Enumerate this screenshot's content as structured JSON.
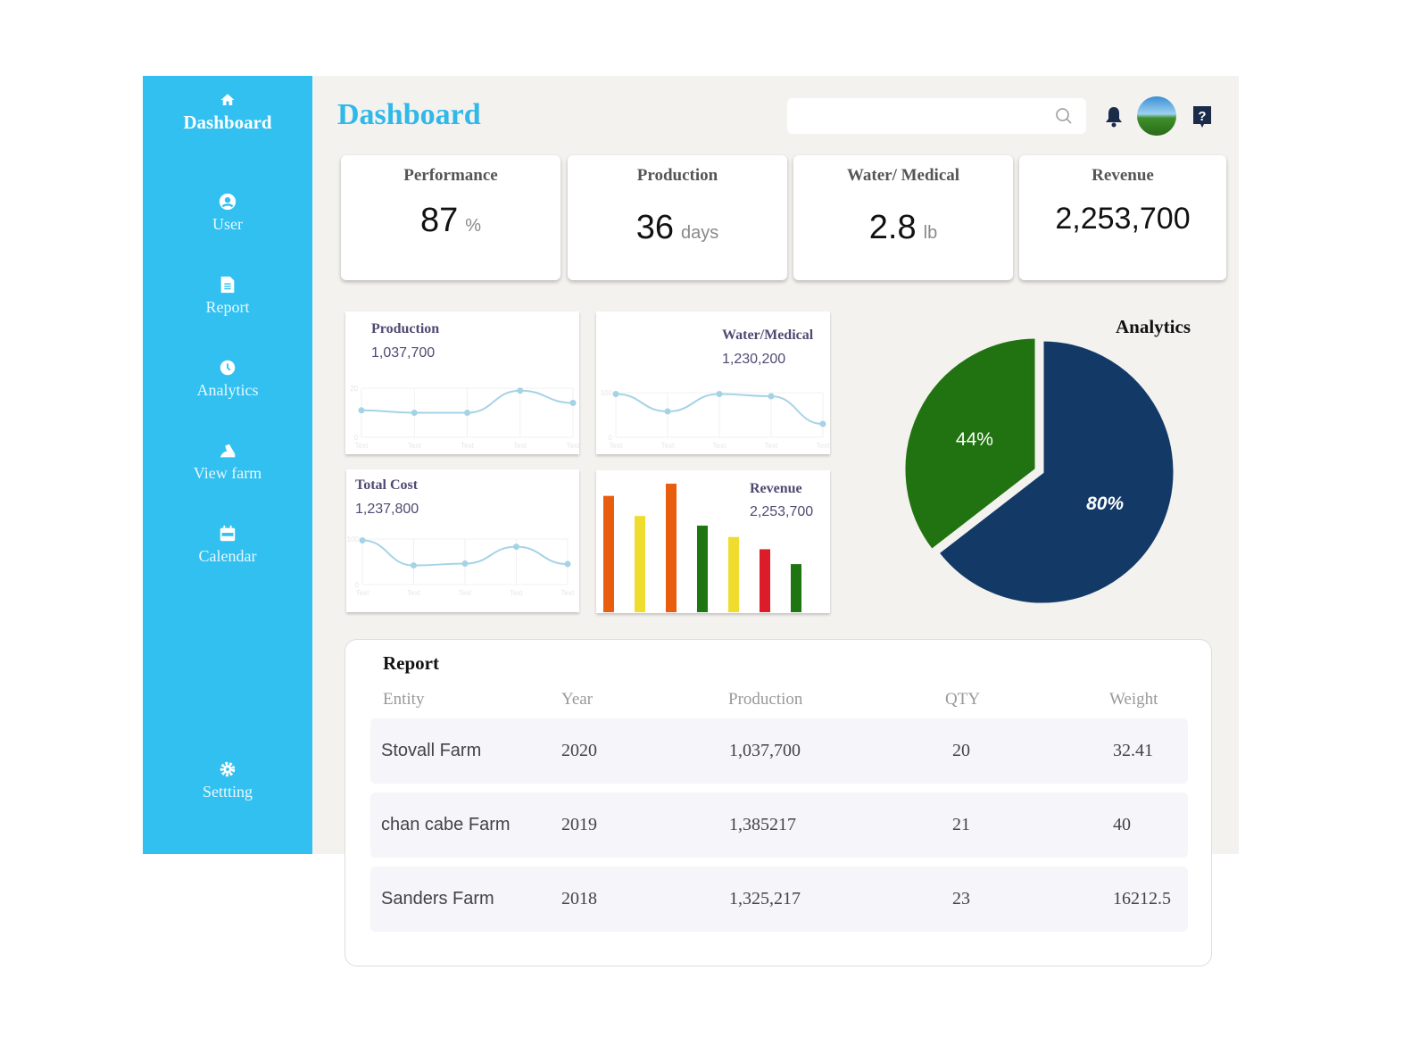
{
  "sidebar": {
    "items": [
      {
        "label": "Dashboard",
        "icon": "home-icon"
      },
      {
        "label": "User",
        "icon": "user-circle-icon"
      },
      {
        "label": "Report",
        "icon": "document-icon"
      },
      {
        "label": "Analytics",
        "icon": "clock-icon"
      },
      {
        "label": "View farm",
        "icon": "farm-icon"
      },
      {
        "label": "Calendar",
        "icon": "calendar-icon"
      },
      {
        "label": "Settting",
        "icon": "gear-icon"
      }
    ]
  },
  "header": {
    "title": "Dashboard",
    "search_placeholder": ""
  },
  "kpis": [
    {
      "label": "Performance",
      "value": "87",
      "unit": "%"
    },
    {
      "label": "Production",
      "value": "36",
      "unit": "days"
    },
    {
      "label": "Water/ Medical",
      "value": "2.8",
      "unit": "lb"
    },
    {
      "label": "Revenue",
      "value": "2,253,700",
      "unit": ""
    }
  ],
  "chart_data": [
    {
      "type": "line",
      "title": "Production",
      "subtitle": "1,037,700",
      "categories": [
        "Text",
        "Text",
        "Text",
        "Text",
        "Text"
      ],
      "values": [
        11,
        10,
        10,
        19,
        14
      ],
      "ylim": [
        0,
        20
      ],
      "yticks": [
        "0",
        "20"
      ],
      "color": "#a5d3e6"
    },
    {
      "type": "line",
      "title": "Water/Medical",
      "subtitle": "1,230,200",
      "categories": [
        "Text",
        "Text",
        "Text",
        "Text",
        "Text"
      ],
      "values": [
        97,
        58,
        97,
        92,
        30
      ],
      "ylim": [
        0,
        100
      ],
      "yticks": [
        "0",
        "100"
      ],
      "color": "#a5d3e6"
    },
    {
      "type": "line",
      "title": "Total Cost",
      "subtitle": "1,237,800",
      "categories": [
        "Text",
        "Text",
        "Text",
        "Text",
        "Text"
      ],
      "values": [
        97,
        42,
        46,
        83,
        45
      ],
      "ylim": [
        0,
        100
      ],
      "yticks": [
        "0",
        "100"
      ],
      "color": "#a5d3e6"
    },
    {
      "type": "bar",
      "title": "Revenue",
      "subtitle": "2,253,700",
      "values": [
        133,
        110,
        147,
        99,
        86,
        72,
        55
      ],
      "colors": [
        "#e85d0e",
        "#f0dc2e",
        "#e85d0e",
        "#1f7512",
        "#f0dc2e",
        "#dc1c28",
        "#1f7512"
      ]
    },
    {
      "type": "pie",
      "title": "Analytics",
      "slices": [
        {
          "label": "80%",
          "value": 80,
          "color": "#133a67"
        },
        {
          "label": "44%",
          "value": 44,
          "color": "#207310"
        }
      ]
    }
  ],
  "report": {
    "title": "Report",
    "columns": [
      "Entity",
      "Year",
      "Production",
      "QTY",
      "Weight"
    ],
    "rows": [
      [
        "Stovall Farm",
        "2020",
        "1,037,700",
        "20",
        "32.41"
      ],
      [
        "chan cabe Farm",
        "2019",
        "1,385217",
        "21",
        "40"
      ],
      [
        "Sanders Farm",
        "2018",
        "1,325,217",
        "23",
        "16212.5"
      ]
    ]
  }
}
